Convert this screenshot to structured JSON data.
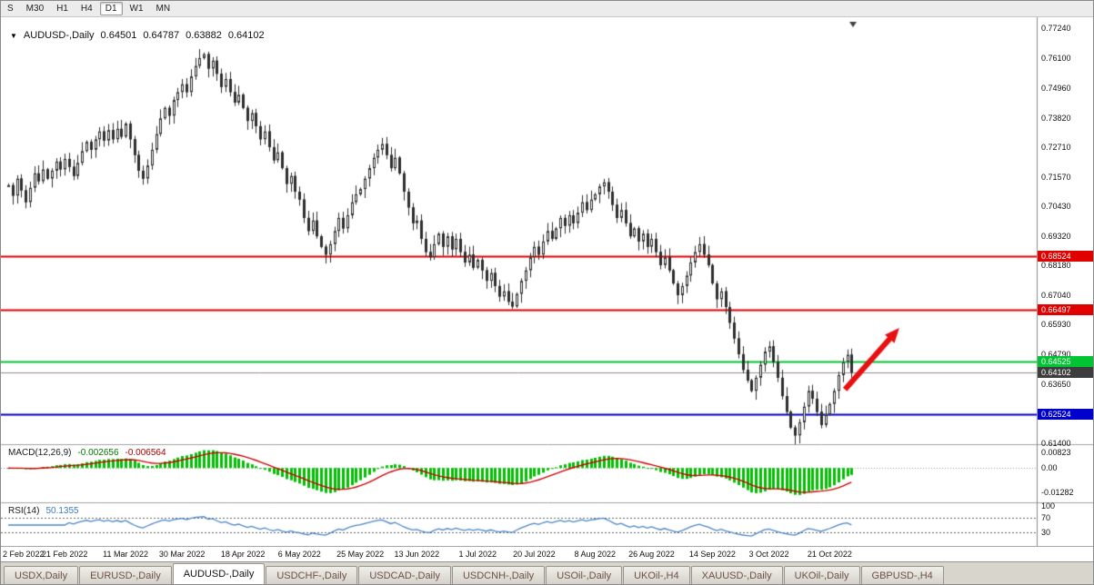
{
  "toolbar": {
    "timeframes": [
      "S",
      "M30",
      "H1",
      "H4",
      "D1",
      "W1",
      "MN"
    ],
    "active": "D1"
  },
  "chart": {
    "symbol_title": "AUDUSD-,Daily",
    "ohlc": {
      "open": "0.64501",
      "high": "0.64787",
      "low": "0.63882",
      "close": "0.64102"
    },
    "price_axis": [
      "0.77240",
      "0.76100",
      "0.74960",
      "0.73820",
      "0.72710",
      "0.71570",
      "0.70430",
      "0.69320",
      "0.68180",
      "0.67040",
      "0.65930",
      "0.64790",
      "0.63650",
      "0.62510",
      "0.61400"
    ],
    "levels": [
      {
        "price": 0.68524,
        "label": "0.68524",
        "color": "#e00000",
        "text_color": "#ffffff",
        "style": "solid",
        "width": 2
      },
      {
        "price": 0.66497,
        "label": "0.66497",
        "color": "#e00000",
        "text_color": "#ffffff",
        "style": "solid",
        "width": 2
      },
      {
        "price": 0.64525,
        "label": "0.64525",
        "color": "#00c432",
        "text_color": "#ffffff",
        "style": "solid",
        "width": 2
      },
      {
        "price": 0.64102,
        "label": "0.64102",
        "color": "#3d3d3d",
        "text_color": "#ffffff",
        "style": "bid",
        "width": 1
      },
      {
        "price": 0.62524,
        "label": "0.62524",
        "color": "#0000cc",
        "text_color": "#ffffff",
        "style": "solid",
        "width": 2
      }
    ],
    "annotation_arrow": {
      "color": "#e81010",
      "from": {
        "i": 192.5,
        "price": 0.6345
      },
      "to": {
        "i": 205,
        "price": 0.658
      }
    },
    "candles": {
      "up_fill": "#ffffff",
      "down_fill": "#2e2e2e",
      "outline": "#2e2e2e",
      "closes": [
        0.7125,
        0.7085,
        0.715,
        0.7105,
        0.706,
        0.7115,
        0.717,
        0.714,
        0.7185,
        0.715,
        0.718,
        0.7215,
        0.7185,
        0.7225,
        0.7195,
        0.716,
        0.721,
        0.7255,
        0.729,
        0.726,
        0.73,
        0.733,
        0.7295,
        0.7335,
        0.73,
        0.734,
        0.731,
        0.736,
        0.73,
        0.724,
        0.718,
        0.715,
        0.72,
        0.726,
        0.732,
        0.738,
        0.742,
        0.739,
        0.745,
        0.748,
        0.751,
        0.748,
        0.754,
        0.758,
        0.761,
        0.7625,
        0.757,
        0.76,
        0.755,
        0.75,
        0.753,
        0.748,
        0.744,
        0.747,
        0.742,
        0.737,
        0.74,
        0.735,
        0.73,
        0.733,
        0.727,
        0.722,
        0.725,
        0.719,
        0.713,
        0.716,
        0.71,
        0.707,
        0.7,
        0.695,
        0.699,
        0.693,
        0.689,
        0.686,
        0.69,
        0.695,
        0.7,
        0.696,
        0.701,
        0.706,
        0.709,
        0.711,
        0.715,
        0.719,
        0.723,
        0.726,
        0.7282,
        0.724,
        0.719,
        0.723,
        0.717,
        0.71,
        0.704,
        0.698,
        0.699,
        0.692,
        0.687,
        0.685,
        0.69,
        0.694,
        0.689,
        0.693,
        0.688,
        0.692,
        0.687,
        0.683,
        0.686,
        0.681,
        0.684,
        0.68,
        0.676,
        0.679,
        0.674,
        0.67,
        0.672,
        0.668,
        0.6662,
        0.671,
        0.676,
        0.68,
        0.685,
        0.689,
        0.686,
        0.691,
        0.695,
        0.692,
        0.696,
        0.7,
        0.697,
        0.701,
        0.698,
        0.702,
        0.706,
        0.703,
        0.707,
        0.709,
        0.712,
        0.7136,
        0.71,
        0.705,
        0.7,
        0.703,
        0.698,
        0.693,
        0.696,
        0.691,
        0.694,
        0.689,
        0.692,
        0.687,
        0.682,
        0.685,
        0.68,
        0.675,
        0.6705,
        0.674,
        0.678,
        0.683,
        0.687,
        0.69,
        0.686,
        0.682,
        0.675,
        0.669,
        0.672,
        0.666,
        0.66,
        0.654,
        0.648,
        0.642,
        0.638,
        0.634,
        0.639,
        0.644,
        0.649,
        0.651,
        0.645,
        0.639,
        0.632,
        0.626,
        0.62,
        0.617,
        0.622,
        0.628,
        0.634,
        0.631,
        0.626,
        0.621,
        0.625,
        0.629,
        0.634,
        0.64,
        0.645,
        0.6478,
        0.641
      ]
    },
    "dates": [
      {
        "label": "2 Feb 2022",
        "i": 0
      },
      {
        "label": "21 Feb 2022",
        "i": 13
      },
      {
        "label": "11 Mar 2022",
        "i": 27
      },
      {
        "label": "30 Mar 2022",
        "i": 40
      },
      {
        "label": "18 Apr 2022",
        "i": 54
      },
      {
        "label": "6 May 2022",
        "i": 67
      },
      {
        "label": "25 May 2022",
        "i": 81
      },
      {
        "label": "13 Jun 2022",
        "i": 94
      },
      {
        "label": "1 Jul 2022",
        "i": 108
      },
      {
        "label": "20 Jul 2022",
        "i": 121
      },
      {
        "label": "8 Aug 2022",
        "i": 135
      },
      {
        "label": "26 Aug 2022",
        "i": 148
      },
      {
        "label": "14 Sep 2022",
        "i": 162
      },
      {
        "label": "3 Oct 2022",
        "i": 175
      },
      {
        "label": "21 Oct 2022",
        "i": 189
      }
    ]
  },
  "macd": {
    "label": "MACD(12,26,9)",
    "value_main": "-0.002656",
    "value_signal": "-0.006564",
    "axis": [
      "0.00823",
      "0.00",
      "-0.01282"
    ],
    "histogram_color": "#00c000",
    "signal_color": "#cc0000"
  },
  "rsi": {
    "label": "RSI(14)",
    "value": "50.1355",
    "axis": [
      "100",
      "70",
      "30"
    ],
    "levels": [
      70,
      30
    ],
    "line_color": "#4a86c8"
  },
  "tabs": [
    {
      "label": "USDX,Daily",
      "active": false
    },
    {
      "label": "EURUSD-,Daily",
      "active": false
    },
    {
      "label": "AUDUSD-,Daily",
      "active": true
    },
    {
      "label": "USDCHF-,Daily",
      "active": false
    },
    {
      "label": "USDCAD-,Daily",
      "active": false
    },
    {
      "label": "USDCNH-,Daily",
      "active": false
    },
    {
      "label": "USOil-,Daily",
      "active": false
    },
    {
      "label": "UKOil-,H4",
      "active": false
    },
    {
      "label": "XAUUSD-,Daily",
      "active": false
    },
    {
      "label": "UKOil-,Daily",
      "active": false
    },
    {
      "label": "GBPUSD-,H4",
      "active": false
    }
  ]
}
